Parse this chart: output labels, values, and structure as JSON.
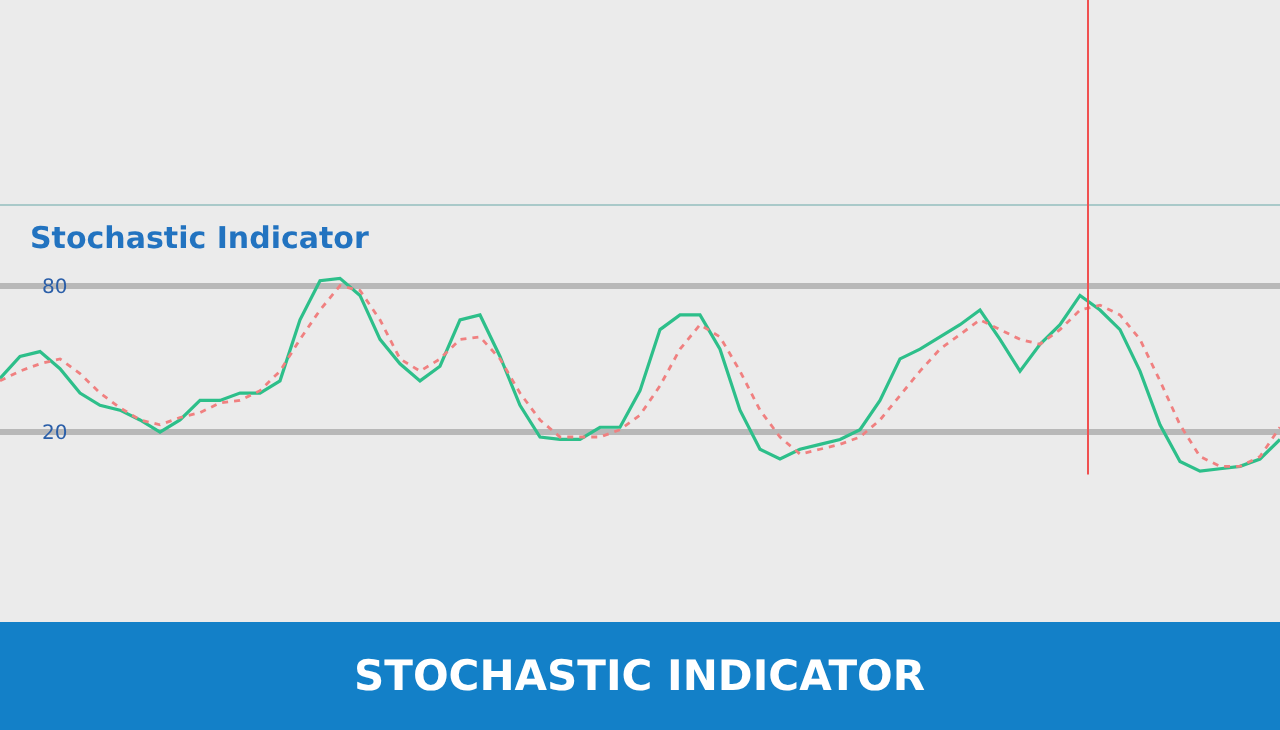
{
  "chart_data": {
    "type": "line",
    "title": "STOCHASTIC INDICATOR",
    "subtitle": "Stochastic Indicator",
    "categories": [
      null,
      null,
      null,
      null,
      null,
      null,
      null,
      null,
      null,
      null,
      null,
      null,
      null,
      null,
      null,
      null,
      null,
      null,
      null,
      null,
      null,
      null,
      null,
      null,
      null,
      null,
      null,
      null,
      null,
      null,
      null,
      null,
      null,
      null,
      null,
      null,
      null,
      null,
      null,
      null,
      null,
      null,
      null,
      null,
      null,
      null,
      null,
      null,
      null,
      null,
      null,
      null,
      null,
      null,
      null,
      null,
      null,
      null,
      null,
      null,
      null,
      null,
      null,
      null,
      null
    ],
    "series": [
      {
        "color": "#2dbf8a",
        "line_style": "solid",
        "values": [
          42,
          51,
          53,
          46,
          36,
          31,
          29,
          25,
          20,
          25,
          33,
          33,
          36,
          36,
          41,
          66,
          82,
          83,
          76,
          58,
          48,
          41,
          47,
          66,
          68,
          51,
          31,
          18,
          17,
          17,
          22,
          22,
          37,
          62,
          68,
          68,
          54,
          29,
          13,
          9,
          13,
          15,
          17,
          21,
          33,
          50,
          54,
          59,
          64,
          70,
          58,
          45,
          56,
          64,
          76,
          70,
          62,
          45,
          23,
          8,
          4,
          5,
          6,
          9,
          17
        ]
      },
      {
        "color": "#f08080",
        "line_style": "dotted",
        "values": [
          41,
          45,
          48,
          50,
          44,
          36,
          30,
          25,
          23,
          26,
          28,
          32,
          33,
          37,
          45,
          58,
          70,
          80,
          78,
          66,
          50,
          45,
          50,
          58,
          59,
          50,
          36,
          25,
          18,
          18,
          18,
          21,
          27,
          39,
          54,
          64,
          59,
          45,
          29,
          18,
          11,
          13,
          15,
          18,
          25,
          35,
          45,
          54,
          60,
          66,
          62,
          58,
          56,
          62,
          70,
          72,
          68,
          58,
          41,
          23,
          10,
          6,
          6,
          10,
          22
        ]
      }
    ],
    "ylim": [
      -102,
      197
    ],
    "yticks": [
      20,
      80
    ],
    "grid": "y",
    "tick_labels": "y",
    "marker": "none",
    "ref_lines": [
      {
        "axis": "y",
        "value": 113,
        "color": "#a9c9c9"
      }
    ]
  }
}
